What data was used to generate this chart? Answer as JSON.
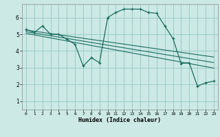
{
  "xlabel": "Humidex (Indice chaleur)",
  "ylabel": "",
  "bg_color": "#cce9e5",
  "grid_color": "#99ccc8",
  "line_color": "#1a6b5e",
  "xlim": [
    -0.5,
    23.5
  ],
  "ylim": [
    0.5,
    6.8
  ],
  "xticks": [
    0,
    1,
    2,
    3,
    4,
    5,
    6,
    7,
    8,
    9,
    10,
    11,
    12,
    13,
    14,
    15,
    16,
    17,
    18,
    19,
    20,
    21,
    22,
    23
  ],
  "yticks": [
    1,
    2,
    3,
    4,
    5,
    6
  ],
  "main_series": [
    5.3,
    5.1,
    5.5,
    5.0,
    5.0,
    4.7,
    4.4,
    3.1,
    3.6,
    3.3,
    6.0,
    6.3,
    6.5,
    6.5,
    6.5,
    6.3,
    6.25,
    5.5,
    4.75,
    3.25,
    3.3,
    1.9,
    2.1,
    2.2
  ],
  "trend1": [
    5.25,
    5.18,
    5.11,
    5.04,
    4.97,
    4.9,
    4.83,
    4.76,
    4.69,
    4.62,
    4.55,
    4.48,
    4.41,
    4.34,
    4.27,
    4.2,
    4.13,
    4.06,
    3.99,
    3.92,
    3.85,
    3.78,
    3.71,
    3.64
  ],
  "trend2": [
    5.15,
    5.07,
    4.99,
    4.91,
    4.83,
    4.75,
    4.67,
    4.59,
    4.51,
    4.43,
    4.35,
    4.27,
    4.19,
    4.11,
    4.03,
    3.95,
    3.87,
    3.79,
    3.71,
    3.63,
    3.55,
    3.47,
    3.39,
    3.31
  ],
  "trend3": [
    5.05,
    4.96,
    4.87,
    4.78,
    4.69,
    4.6,
    4.51,
    4.42,
    4.33,
    4.24,
    4.15,
    4.06,
    3.97,
    3.88,
    3.79,
    3.7,
    3.61,
    3.52,
    3.43,
    3.34,
    3.25,
    3.16,
    3.07,
    2.98
  ]
}
